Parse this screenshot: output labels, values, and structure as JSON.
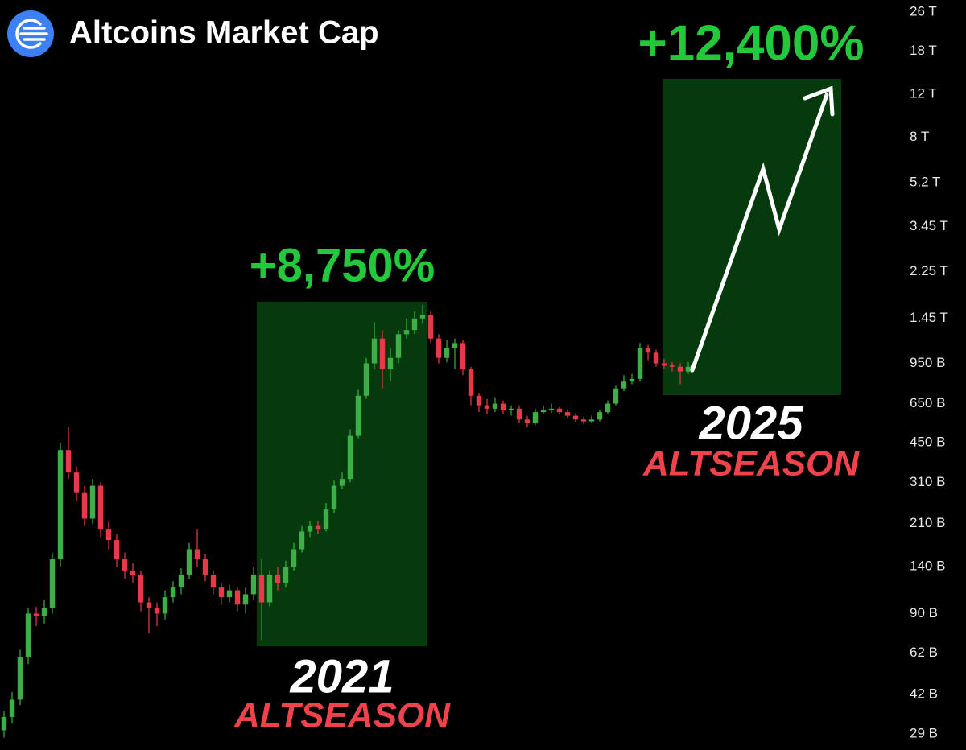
{
  "chart_data": {
    "type": "candlestick",
    "title": "Altcoins Market Cap",
    "log": true,
    "up_color": "#3dae48",
    "down_color": "#e8394a",
    "ylim": [
      24900000000.0,
      29100000000000.0
    ],
    "yticks": [
      {
        "value": 26000000000000.0,
        "label": "26 T"
      },
      {
        "value": 18000000000000.0,
        "label": "18 T"
      },
      {
        "value": 12000000000000.0,
        "label": "12 T"
      },
      {
        "value": 8000000000000.0,
        "label": "8 T"
      },
      {
        "value": 5200000000000.0,
        "label": "5.2 T"
      },
      {
        "value": 3450000000000.0,
        "label": "3.45 T"
      },
      {
        "value": 2250000000000.0,
        "label": "2.25 T"
      },
      {
        "value": 1450000000000.0,
        "label": "1.45 T"
      },
      {
        "value": 950000000000.0,
        "label": "950 B"
      },
      {
        "value": 650000000000.0,
        "label": "650 B"
      },
      {
        "value": 450000000000.0,
        "label": "450 B"
      },
      {
        "value": 310000000000.0,
        "label": "310 B"
      },
      {
        "value": 210000000000.0,
        "label": "210 B"
      },
      {
        "value": 140000000000.0,
        "label": "140 B"
      },
      {
        "value": 90000000000.0,
        "label": "90 B"
      },
      {
        "value": 62000000000.0,
        "label": "62 B"
      },
      {
        "value": 42000000000.0,
        "label": "42 B"
      },
      {
        "value": 29000000000.0,
        "label": "29 B"
      }
    ],
    "open": [
      30000000000.0,
      34000000000.0,
      40000000000.0,
      60000000000.0,
      90000000000.0,
      88000000000.0,
      95000000000.0,
      150000000000.0,
      420000000000.0,
      340000000000.0,
      280000000000.0,
      220000000000.0,
      300000000000.0,
      200000000000.0,
      180000000000.0,
      150000000000.0,
      135000000000.0,
      130000000000.0,
      100000000000.0,
      95000000000.0,
      90000000000.0,
      105000000000.0,
      115000000000.0,
      130000000000.0,
      165000000000.0,
      150000000000.0,
      130000000000.0,
      115000000000.0,
      105000000000.0,
      112000000000.0,
      98000000000.0,
      108000000000.0,
      130000000000.0,
      100000000000.0,
      130000000000.0,
      120000000000.0,
      140000000000.0,
      165000000000.0,
      195000000000.0,
      205000000000.0,
      200000000000.0,
      240000000000.0,
      300000000000.0,
      320000000000.0,
      480000000000.0,
      700000000000.0,
      950000000000.0,
      1200000000000.0,
      900000000000.0,
      1000000000000.0,
      1250000000000.0,
      1300000000000.0,
      1450000000000.0,
      1500000000000.0,
      1200000000000.0,
      1000000000000.0,
      1100000000000.0,
      1150000000000.0,
      900000000000.0,
      700000000000.0,
      640000000000.0,
      620000000000.0,
      650000000000.0,
      610000000000.0,
      620000000000.0,
      560000000000.0,
      540000000000.0,
      600000000000.0,
      610000000000.0,
      620000000000.0,
      600000000000.0,
      580000000000.0,
      560000000000.0,
      550000000000.0,
      560000000000.0,
      600000000000.0,
      650000000000.0,
      750000000000.0,
      800000000000.0,
      820000000000.0,
      1100000000000.0,
      1050000000000.0,
      950000000000.0,
      930000000000.0,
      920000000000.0,
      880000000000.0
    ],
    "high": [
      36000000000.0,
      43000000000.0,
      64000000000.0,
      95000000000.0,
      96000000000.0,
      102000000000.0,
      160000000000.0,
      450000000000.0,
      520000000000.0,
      360000000000.0,
      300000000000.0,
      320000000000.0,
      310000000000.0,
      215000000000.0,
      190000000000.0,
      160000000000.0,
      145000000000.0,
      135000000000.0,
      105000000000.0,
      100000000000.0,
      112000000000.0,
      122000000000.0,
      138000000000.0,
      175000000000.0,
      200000000000.0,
      158000000000.0,
      135000000000.0,
      120000000000.0,
      118000000000.0,
      115000000000.0,
      115000000000.0,
      140000000000.0,
      150000000000.0,
      135000000000.0,
      140000000000.0,
      148000000000.0,
      175000000000.0,
      205000000000.0,
      215000000000.0,
      215000000000.0,
      255000000000.0,
      315000000000.0,
      340000000000.0,
      510000000000.0,
      740000000000.0,
      1000000000000.0,
      1400000000000.0,
      1300000000000.0,
      1100000000000.0,
      1300000000000.0,
      1450000000000.0,
      1550000000000.0,
      1650000000000.0,
      1550000000000.0,
      1250000000000.0,
      1180000000000.0,
      1200000000000.0,
      1180000000000.0,
      920000000000.0,
      720000000000.0,
      680000000000.0,
      690000000000.0,
      670000000000.0,
      640000000000.0,
      640000000000.0,
      580000000000.0,
      620000000000.0,
      640000000000.0,
      650000000000.0,
      630000000000.0,
      615000000000.0,
      595000000000.0,
      575000000000.0,
      580000000000.0,
      615000000000.0,
      670000000000.0,
      770000000000.0,
      850000000000.0,
      860000000000.0,
      1150000000000.0,
      1130000000000.0,
      1080000000000.0,
      990000000000.0,
      960000000000.0,
      950000000000.0,
      960000000000.0
    ],
    "low": [
      28000000000.0,
      32000000000.0,
      38000000000.0,
      56000000000.0,
      80000000000.0,
      82000000000.0,
      90000000000.0,
      140000000000.0,
      320000000000.0,
      260000000000.0,
      205000000000.0,
      210000000000.0,
      185000000000.0,
      165000000000.0,
      140000000000.0,
      125000000000.0,
      120000000000.0,
      92000000000.0,
      75000000000.0,
      80000000000.0,
      85000000000.0,
      100000000000.0,
      108000000000.0,
      125000000000.0,
      140000000000.0,
      122000000000.0,
      108000000000.0,
      98000000000.0,
      100000000000.0,
      92000000000.0,
      90000000000.0,
      102000000000.0,
      70000000000.0,
      96000000000.0,
      112000000000.0,
      115000000000.0,
      135000000000.0,
      160000000000.0,
      185000000000.0,
      190000000000.0,
      195000000000.0,
      232000000000.0,
      290000000000.0,
      310000000000.0,
      470000000000.0,
      680000000000.0,
      900000000000.0,
      750000000000.0,
      800000000000.0,
      950000000000.0,
      1200000000000.0,
      1250000000000.0,
      1380000000000.0,
      1150000000000.0,
      950000000000.0,
      960000000000.0,
      900000000000.0,
      850000000000.0,
      640000000000.0,
      600000000000.0,
      590000000000.0,
      600000000000.0,
      590000000000.0,
      580000000000.0,
      540000000000.0,
      520000000000.0,
      530000000000.0,
      590000000000.0,
      595000000000.0,
      585000000000.0,
      565000000000.0,
      545000000000.0,
      535000000000.0,
      540000000000.0,
      550000000000.0,
      590000000000.0,
      640000000000.0,
      730000000000.0,
      780000000000.0,
      800000000000.0,
      980000000000.0,
      920000000000.0,
      900000000000.0,
      880000000000.0,
      780000000000.0,
      860000000000.0
    ],
    "close": [
      34000000000.0,
      40000000000.0,
      60000000000.0,
      90000000000.0,
      88000000000.0,
      95000000000.0,
      150000000000.0,
      420000000000.0,
      340000000000.0,
      280000000000.0,
      220000000000.0,
      300000000000.0,
      200000000000.0,
      180000000000.0,
      150000000000.0,
      135000000000.0,
      130000000000.0,
      100000000000.0,
      95000000000.0,
      90000000000.0,
      105000000000.0,
      115000000000.0,
      130000000000.0,
      165000000000.0,
      150000000000.0,
      130000000000.0,
      115000000000.0,
      105000000000.0,
      112000000000.0,
      98000000000.0,
      108000000000.0,
      130000000000.0,
      100000000000.0,
      130000000000.0,
      120000000000.0,
      140000000000.0,
      165000000000.0,
      195000000000.0,
      205000000000.0,
      200000000000.0,
      240000000000.0,
      300000000000.0,
      320000000000.0,
      480000000000.0,
      700000000000.0,
      950000000000.0,
      1200000000000.0,
      900000000000.0,
      1000000000000.0,
      1250000000000.0,
      1300000000000.0,
      1450000000000.0,
      1500000000000.0,
      1200000000000.0,
      1000000000000.0,
      1100000000000.0,
      1150000000000.0,
      900000000000.0,
      700000000000.0,
      640000000000.0,
      620000000000.0,
      650000000000.0,
      610000000000.0,
      620000000000.0,
      560000000000.0,
      540000000000.0,
      600000000000.0,
      610000000000.0,
      620000000000.0,
      600000000000.0,
      580000000000.0,
      560000000000.0,
      550000000000.0,
      560000000000.0,
      600000000000.0,
      650000000000.0,
      750000000000.0,
      800000000000.0,
      820000000000.0,
      1100000000000.0,
      1050000000000.0,
      950000000000.0,
      930000000000.0,
      920000000000.0,
      880000000000.0,
      920000000000.0
    ],
    "annotations": [
      {
        "text": "+8,750%",
        "color": "#22c93a"
      },
      {
        "text": "2021",
        "color": "#ffffff"
      },
      {
        "text": "ALTSEASON",
        "color": "#f0424a"
      },
      {
        "text": "+12,400%",
        "color": "#22c93a"
      },
      {
        "text": "2025",
        "color": "#ffffff"
      },
      {
        "text": "ALTSEASON",
        "color": "#f0424a"
      }
    ]
  }
}
